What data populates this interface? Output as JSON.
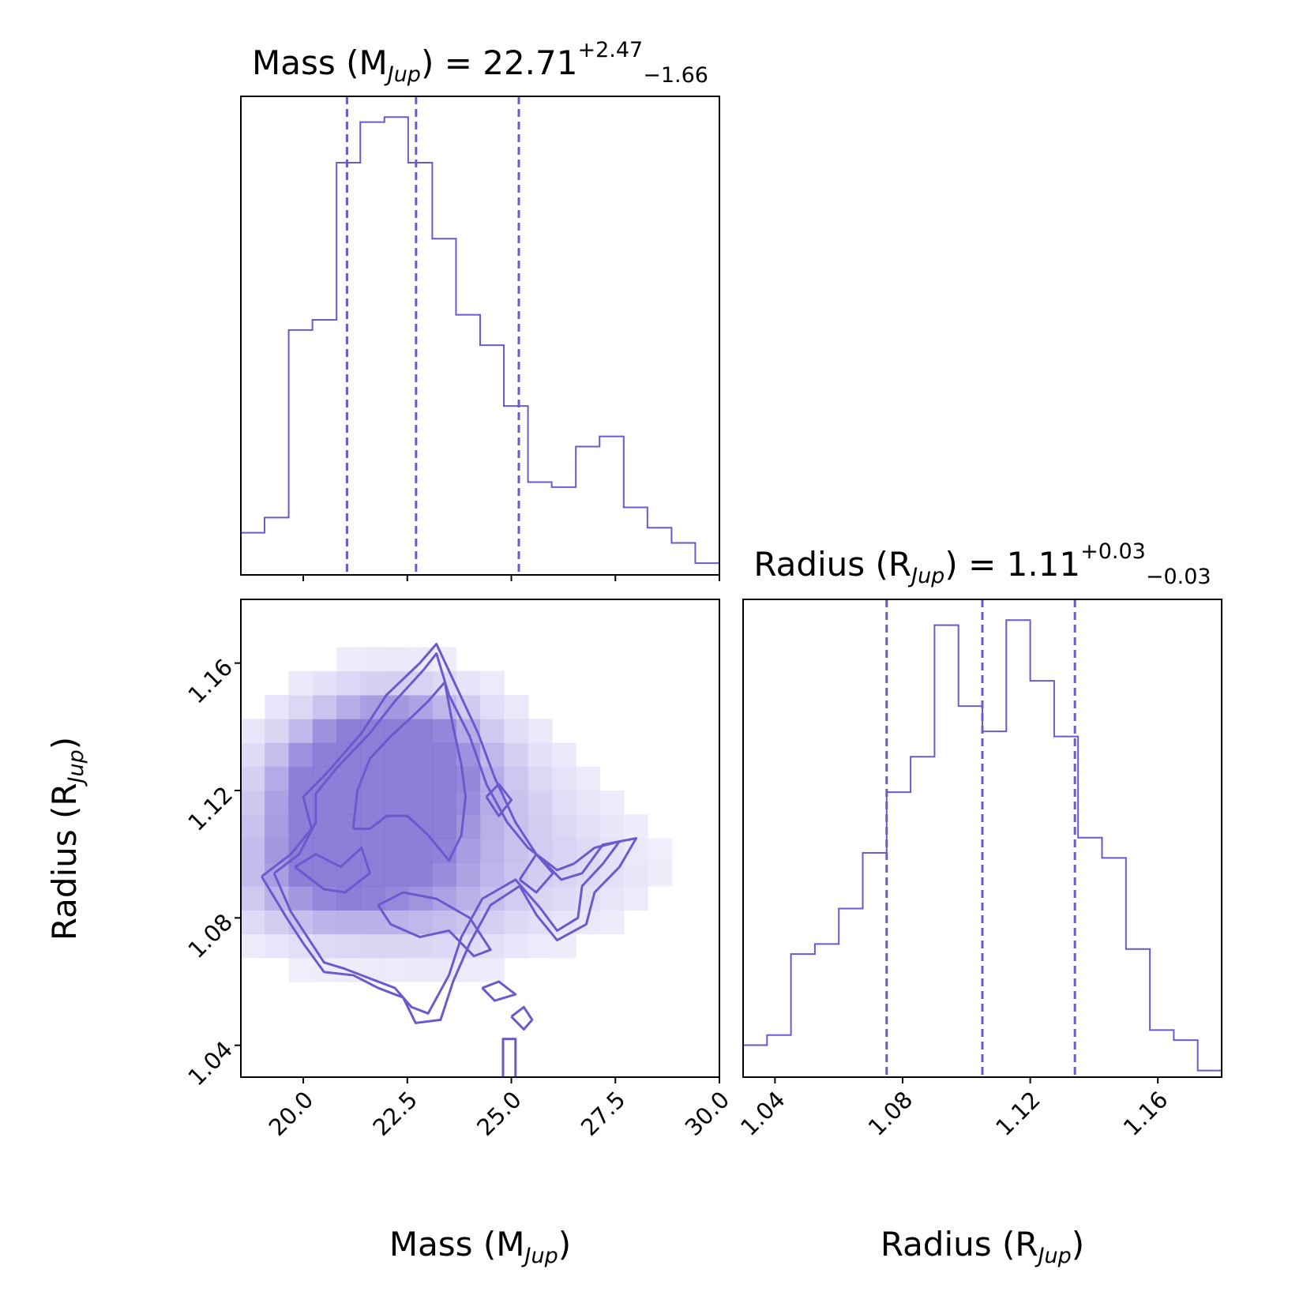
{
  "colors": {
    "accent": "#6a5acd",
    "fill_max": "#6a5acd",
    "fill_min": "#f6f4fe"
  },
  "chart_data": [
    {
      "type": "histogram",
      "panel": "mass-marginal",
      "title": {
        "prefix": "Mass (M",
        "sub": "Jup",
        "suffix": ") = 22.71",
        "err_plus": "+2.47",
        "err_minus": "−1.66"
      },
      "xlim": [
        18.5,
        30.0
      ],
      "bin_edges": [
        18.5,
        19.07,
        19.65,
        20.22,
        20.8,
        21.37,
        21.95,
        22.52,
        23.1,
        23.67,
        24.25,
        24.82,
        25.4,
        25.97,
        26.55,
        27.12,
        27.7,
        28.27,
        28.85,
        29.42,
        30.0
      ],
      "counts": [
        0.08,
        0.11,
        0.48,
        0.5,
        0.81,
        0.89,
        0.9,
        0.81,
        0.66,
        0.51,
        0.45,
        0.33,
        0.18,
        0.17,
        0.25,
        0.27,
        0.13,
        0.09,
        0.06,
        0.02
      ],
      "quantiles": [
        21.05,
        22.71,
        25.18
      ]
    },
    {
      "type": "histogram",
      "panel": "radius-marginal",
      "title": {
        "prefix": "Radius (R",
        "sub": "Jup",
        "suffix": ") = 1.11",
        "err_plus": "+0.03",
        "err_minus": "−0.03"
      },
      "xlim": [
        1.03,
        1.18
      ],
      "bin_edges": [
        1.03,
        1.0375,
        1.045,
        1.0525,
        1.06,
        1.0675,
        1.075,
        1.0825,
        1.09,
        1.0975,
        1.105,
        1.1125,
        1.12,
        1.1275,
        1.135,
        1.1425,
        1.15,
        1.1575,
        1.165,
        1.1725,
        1.18
      ],
      "counts": [
        0.06,
        0.08,
        0.24,
        0.26,
        0.33,
        0.44,
        0.56,
        0.63,
        0.89,
        0.73,
        0.68,
        0.9,
        0.78,
        0.67,
        0.47,
        0.43,
        0.25,
        0.09,
        0.07,
        0.01
      ],
      "quantiles": [
        1.075,
        1.105,
        1.134
      ]
    },
    {
      "type": "heatmap",
      "panel": "mass-radius-2d",
      "xlabel": {
        "prefix": "Mass (M",
        "sub": "Jup",
        "suffix": ")"
      },
      "ylabel": {
        "prefix": "Radius (R",
        "sub": "Jup",
        "suffix": ")"
      },
      "xlim": [
        18.5,
        30.0
      ],
      "ylim": [
        1.03,
        1.18
      ],
      "xticks": [
        20.0,
        22.5,
        25.0,
        27.5,
        30.0
      ],
      "xtick_labels": [
        "20.0",
        "22.5",
        "25.0",
        "27.5",
        "30.0"
      ],
      "yticks": [
        1.04,
        1.08,
        1.12,
        1.16
      ],
      "ytick_labels": [
        "1.04",
        "1.08",
        "1.12",
        "1.16"
      ],
      "density_peaks": [
        {
          "x": 22.3,
          "y": 1.133,
          "w": 1.0
        },
        {
          "x": 21.6,
          "y": 1.122,
          "w": 0.85
        },
        {
          "x": 21.2,
          "y": 1.117,
          "w": 0.7
        },
        {
          "x": 20.2,
          "y": 1.094,
          "w": 0.55
        },
        {
          "x": 21.3,
          "y": 1.094,
          "w": 0.5
        },
        {
          "x": 22.9,
          "y": 1.1,
          "w": 0.35
        },
        {
          "x": 23.6,
          "y": 1.085,
          "w": 0.3
        },
        {
          "x": 24.7,
          "y": 1.117,
          "w": 0.25
        },
        {
          "x": 26.5,
          "y": 1.095,
          "w": 0.2
        }
      ],
      "contours": [
        [
          [
            19.0,
            1.093
          ],
          [
            19.7,
            1.1
          ],
          [
            20.2,
            1.108
          ],
          [
            20.0,
            1.118
          ],
          [
            20.6,
            1.126
          ],
          [
            21.4,
            1.138
          ],
          [
            22.0,
            1.15
          ],
          [
            22.8,
            1.16
          ],
          [
            23.2,
            1.166
          ],
          [
            23.7,
            1.152
          ],
          [
            24.2,
            1.138
          ],
          [
            24.6,
            1.124
          ],
          [
            25.1,
            1.11
          ],
          [
            25.6,
            1.1
          ],
          [
            26.2,
            1.092
          ],
          [
            26.7,
            1.094
          ],
          [
            27.2,
            1.103
          ],
          [
            28.0,
            1.105
          ],
          [
            27.6,
            1.096
          ],
          [
            27.0,
            1.088
          ],
          [
            26.8,
            1.078
          ],
          [
            26.1,
            1.073
          ],
          [
            25.6,
            1.081
          ],
          [
            25.2,
            1.09
          ],
          [
            24.5,
            1.084
          ],
          [
            24.0,
            1.072
          ],
          [
            23.6,
            1.06
          ],
          [
            23.3,
            1.048
          ],
          [
            22.7,
            1.047
          ],
          [
            22.4,
            1.055
          ],
          [
            21.8,
            1.058
          ],
          [
            21.2,
            1.062
          ],
          [
            20.5,
            1.063
          ],
          [
            20.0,
            1.072
          ],
          [
            19.6,
            1.08
          ],
          [
            19.0,
            1.093
          ]
        ],
        [
          [
            19.3,
            1.094
          ],
          [
            19.9,
            1.1
          ],
          [
            20.3,
            1.11
          ],
          [
            20.3,
            1.119
          ],
          [
            20.8,
            1.127
          ],
          [
            21.6,
            1.138
          ],
          [
            22.2,
            1.148
          ],
          [
            22.9,
            1.158
          ],
          [
            23.2,
            1.163
          ],
          [
            23.5,
            1.15
          ],
          [
            24.0,
            1.137
          ],
          [
            24.4,
            1.122
          ],
          [
            24.9,
            1.11
          ],
          [
            25.4,
            1.102
          ],
          [
            26.1,
            1.095
          ],
          [
            26.5,
            1.097
          ],
          [
            27.0,
            1.102
          ],
          [
            27.6,
            1.104
          ],
          [
            27.2,
            1.097
          ],
          [
            26.7,
            1.09
          ],
          [
            26.6,
            1.08
          ],
          [
            26.1,
            1.076
          ],
          [
            25.7,
            1.083
          ],
          [
            25.1,
            1.092
          ],
          [
            24.3,
            1.086
          ],
          [
            23.8,
            1.074
          ],
          [
            23.5,
            1.062
          ],
          [
            23.0,
            1.05
          ],
          [
            22.6,
            1.052
          ],
          [
            22.2,
            1.058
          ],
          [
            21.6,
            1.061
          ],
          [
            21.0,
            1.064
          ],
          [
            20.5,
            1.066
          ],
          [
            20.1,
            1.074
          ],
          [
            19.7,
            1.082
          ],
          [
            19.3,
            1.094
          ]
        ],
        [
          [
            21.2,
            1.108
          ],
          [
            21.3,
            1.12
          ],
          [
            21.6,
            1.13
          ],
          [
            22.1,
            1.137
          ],
          [
            22.6,
            1.143
          ],
          [
            23.0,
            1.148
          ],
          [
            23.4,
            1.154
          ],
          [
            23.6,
            1.14
          ],
          [
            23.8,
            1.128
          ],
          [
            23.9,
            1.118
          ],
          [
            23.8,
            1.106
          ],
          [
            23.5,
            1.098
          ],
          [
            23.0,
            1.106
          ],
          [
            22.5,
            1.112
          ],
          [
            22.0,
            1.112
          ],
          [
            21.6,
            1.108
          ],
          [
            21.2,
            1.108
          ]
        ],
        [
          [
            19.8,
            1.096
          ],
          [
            20.3,
            1.1
          ],
          [
            20.9,
            1.096
          ],
          [
            21.4,
            1.102
          ],
          [
            21.6,
            1.094
          ],
          [
            21.0,
            1.088
          ],
          [
            20.5,
            1.089
          ],
          [
            19.8,
            1.096
          ]
        ],
        [
          [
            21.8,
            1.084
          ],
          [
            22.4,
            1.088
          ],
          [
            23.2,
            1.086
          ],
          [
            24.0,
            1.08
          ],
          [
            24.5,
            1.07
          ],
          [
            24.1,
            1.068
          ],
          [
            23.5,
            1.076
          ],
          [
            22.8,
            1.074
          ],
          [
            22.1,
            1.078
          ],
          [
            21.8,
            1.084
          ]
        ],
        [
          [
            24.4,
            1.118
          ],
          [
            24.7,
            1.122
          ],
          [
            25.0,
            1.117
          ],
          [
            24.7,
            1.112
          ],
          [
            24.4,
            1.118
          ]
        ],
        [
          [
            25.2,
            1.092
          ],
          [
            25.6,
            1.1
          ],
          [
            26.0,
            1.094
          ],
          [
            25.6,
            1.088
          ],
          [
            25.2,
            1.092
          ]
        ],
        [
          [
            24.3,
            1.058
          ],
          [
            24.7,
            1.06
          ],
          [
            25.1,
            1.056
          ],
          [
            24.6,
            1.054
          ],
          [
            24.3,
            1.058
          ]
        ],
        [
          [
            25.0,
            1.049
          ],
          [
            25.3,
            1.052
          ],
          [
            25.5,
            1.048
          ],
          [
            25.3,
            1.045
          ],
          [
            25.0,
            1.049
          ]
        ],
        [
          [
            24.8,
            1.03
          ],
          [
            24.8,
            1.042
          ],
          [
            25.1,
            1.042
          ],
          [
            25.1,
            1.03
          ]
        ]
      ]
    }
  ]
}
